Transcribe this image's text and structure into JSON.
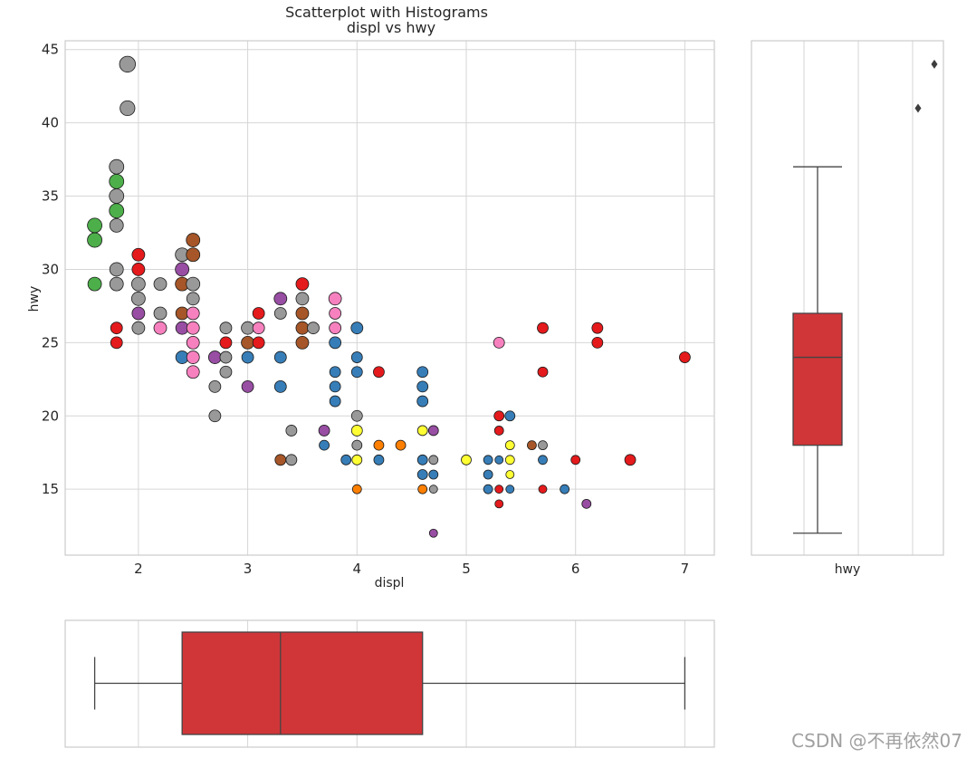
{
  "chart_data": {
    "type": "scatter",
    "title": "Scatterplot with Histograms",
    "subtitle": "displ vs hwy",
    "xlabel": "displ",
    "ylabel": "hwy",
    "xlim": [
      1.33,
      7.27
    ],
    "ylim": [
      10.5,
      45.6
    ],
    "xticks": [
      2,
      3,
      4,
      5,
      6,
      7
    ],
    "yticks": [
      15,
      20,
      25,
      30,
      35,
      40,
      45
    ],
    "grid": true,
    "palette": {
      "compact": "#4daf4a",
      "subcompact": "#999999",
      "midsize": "#e41a1c",
      "minivan": "#f781bf",
      "2seater": "#984ea3",
      "suv": "#377eb8",
      "pickup": "#ff7f00",
      "misc1": "#a65628",
      "misc2": "#ffff33"
    },
    "points": [
      {
        "x": 1.9,
        "y": 44,
        "s": 8.8,
        "c": "#999999"
      },
      {
        "x": 1.9,
        "y": 41,
        "s": 8.2,
        "c": "#999999"
      },
      {
        "x": 1.8,
        "y": 37,
        "s": 8,
        "c": "#999999"
      },
      {
        "x": 1.8,
        "y": 36,
        "s": 8,
        "c": "#4daf4a"
      },
      {
        "x": 1.8,
        "y": 35,
        "s": 8,
        "c": "#999999"
      },
      {
        "x": 1.8,
        "y": 34,
        "s": 8,
        "c": "#4daf4a"
      },
      {
        "x": 1.8,
        "y": 33,
        "s": 7.5,
        "c": "#999999"
      },
      {
        "x": 1.6,
        "y": 33,
        "s": 8,
        "c": "#4daf4a"
      },
      {
        "x": 1.6,
        "y": 32,
        "s": 8,
        "c": "#4daf4a"
      },
      {
        "x": 1.6,
        "y": 29,
        "s": 7.5,
        "c": "#4daf4a"
      },
      {
        "x": 1.8,
        "y": 30,
        "s": 7.5,
        "c": "#999999"
      },
      {
        "x": 1.8,
        "y": 29,
        "s": 7.5,
        "c": "#999999"
      },
      {
        "x": 1.8,
        "y": 26,
        "s": 6.5,
        "c": "#e41a1c"
      },
      {
        "x": 1.8,
        "y": 25,
        "s": 6.5,
        "c": "#e41a1c"
      },
      {
        "x": 2.0,
        "y": 31,
        "s": 7,
        "c": "#e41a1c"
      },
      {
        "x": 2.0,
        "y": 30,
        "s": 7,
        "c": "#e41a1c"
      },
      {
        "x": 2.0,
        "y": 29,
        "s": 7.5,
        "c": "#999999"
      },
      {
        "x": 2.0,
        "y": 28,
        "s": 7.5,
        "c": "#999999"
      },
      {
        "x": 2.0,
        "y": 27,
        "s": 7,
        "c": "#984ea3"
      },
      {
        "x": 2.0,
        "y": 26,
        "s": 7,
        "c": "#999999"
      },
      {
        "x": 2.2,
        "y": 29,
        "s": 7,
        "c": "#999999"
      },
      {
        "x": 2.2,
        "y": 27,
        "s": 7,
        "c": "#999999"
      },
      {
        "x": 2.2,
        "y": 26,
        "s": 7,
        "c": "#f781bf"
      },
      {
        "x": 2.4,
        "y": 31,
        "s": 7.5,
        "c": "#999999"
      },
      {
        "x": 2.4,
        "y": 30,
        "s": 7.5,
        "c": "#984ea3"
      },
      {
        "x": 2.4,
        "y": 29,
        "s": 7.5,
        "c": "#a65628"
      },
      {
        "x": 2.4,
        "y": 27,
        "s": 7,
        "c": "#a65628"
      },
      {
        "x": 2.4,
        "y": 26,
        "s": 7,
        "c": "#984ea3"
      },
      {
        "x": 2.4,
        "y": 24,
        "s": 7,
        "c": "#377eb8"
      },
      {
        "x": 2.5,
        "y": 32,
        "s": 7.5,
        "c": "#a65628"
      },
      {
        "x": 2.5,
        "y": 31,
        "s": 7.5,
        "c": "#a65628"
      },
      {
        "x": 2.5,
        "y": 29,
        "s": 7.5,
        "c": "#999999"
      },
      {
        "x": 2.5,
        "y": 28,
        "s": 7,
        "c": "#999999"
      },
      {
        "x": 2.5,
        "y": 27,
        "s": 7,
        "c": "#f781bf"
      },
      {
        "x": 2.5,
        "y": 26,
        "s": 7,
        "c": "#f781bf"
      },
      {
        "x": 2.5,
        "y": 25,
        "s": 7,
        "c": "#f781bf"
      },
      {
        "x": 2.5,
        "y": 24,
        "s": 7,
        "c": "#f781bf"
      },
      {
        "x": 2.5,
        "y": 23,
        "s": 7,
        "c": "#f781bf"
      },
      {
        "x": 2.7,
        "y": 24,
        "s": 7,
        "c": "#984ea3"
      },
      {
        "x": 2.7,
        "y": 22,
        "s": 6.5,
        "c": "#999999"
      },
      {
        "x": 2.7,
        "y": 20,
        "s": 6.5,
        "c": "#999999"
      },
      {
        "x": 2.8,
        "y": 26,
        "s": 6.5,
        "c": "#999999"
      },
      {
        "x": 2.8,
        "y": 25,
        "s": 6.5,
        "c": "#e41a1c"
      },
      {
        "x": 2.8,
        "y": 24,
        "s": 6.5,
        "c": "#999999"
      },
      {
        "x": 2.8,
        "y": 23,
        "s": 6.5,
        "c": "#999999"
      },
      {
        "x": 3.0,
        "y": 26,
        "s": 7,
        "c": "#999999"
      },
      {
        "x": 3.0,
        "y": 25,
        "s": 7,
        "c": "#a65628"
      },
      {
        "x": 3.0,
        "y": 24,
        "s": 6.5,
        "c": "#377eb8"
      },
      {
        "x": 3.0,
        "y": 22,
        "s": 6.5,
        "c": "#984ea3"
      },
      {
        "x": 3.1,
        "y": 27,
        "s": 6.5,
        "c": "#e41a1c"
      },
      {
        "x": 3.1,
        "y": 26,
        "s": 6.5,
        "c": "#f781bf"
      },
      {
        "x": 3.1,
        "y": 25,
        "s": 6.5,
        "c": "#e41a1c"
      },
      {
        "x": 3.3,
        "y": 28,
        "s": 7,
        "c": "#984ea3"
      },
      {
        "x": 3.3,
        "y": 27,
        "s": 6.5,
        "c": "#999999"
      },
      {
        "x": 3.3,
        "y": 24,
        "s": 6.5,
        "c": "#377eb8"
      },
      {
        "x": 3.3,
        "y": 22,
        "s": 6.5,
        "c": "#377eb8"
      },
      {
        "x": 3.3,
        "y": 17,
        "s": 6,
        "c": "#a65628"
      },
      {
        "x": 3.4,
        "y": 19,
        "s": 6,
        "c": "#999999"
      },
      {
        "x": 3.4,
        "y": 17,
        "s": 6,
        "c": "#999999"
      },
      {
        "x": 3.5,
        "y": 29,
        "s": 7,
        "c": "#e41a1c"
      },
      {
        "x": 3.5,
        "y": 28,
        "s": 7,
        "c": "#999999"
      },
      {
        "x": 3.5,
        "y": 27,
        "s": 7,
        "c": "#a65628"
      },
      {
        "x": 3.5,
        "y": 26,
        "s": 7,
        "c": "#a65628"
      },
      {
        "x": 3.5,
        "y": 25,
        "s": 7,
        "c": "#a65628"
      },
      {
        "x": 3.6,
        "y": 26,
        "s": 6.5,
        "c": "#999999"
      },
      {
        "x": 3.7,
        "y": 19,
        "s": 6,
        "c": "#984ea3"
      },
      {
        "x": 3.7,
        "y": 18,
        "s": 5.5,
        "c": "#377eb8"
      },
      {
        "x": 3.8,
        "y": 28,
        "s": 7,
        "c": "#f781bf"
      },
      {
        "x": 3.8,
        "y": 27,
        "s": 6.5,
        "c": "#f781bf"
      },
      {
        "x": 3.8,
        "y": 26,
        "s": 6.5,
        "c": "#f781bf"
      },
      {
        "x": 3.8,
        "y": 25,
        "s": 6.5,
        "c": "#377eb8"
      },
      {
        "x": 3.8,
        "y": 23,
        "s": 6,
        "c": "#377eb8"
      },
      {
        "x": 3.8,
        "y": 22,
        "s": 6,
        "c": "#377eb8"
      },
      {
        "x": 3.8,
        "y": 21,
        "s": 6,
        "c": "#377eb8"
      },
      {
        "x": 3.9,
        "y": 17,
        "s": 5.5,
        "c": "#377eb8"
      },
      {
        "x": 4.0,
        "y": 26,
        "s": 6.5,
        "c": "#377eb8"
      },
      {
        "x": 4.0,
        "y": 24,
        "s": 6,
        "c": "#377eb8"
      },
      {
        "x": 4.0,
        "y": 23,
        "s": 6,
        "c": "#377eb8"
      },
      {
        "x": 4.0,
        "y": 20,
        "s": 6,
        "c": "#999999"
      },
      {
        "x": 4.0,
        "y": 19,
        "s": 6,
        "c": "#ffff33"
      },
      {
        "x": 4.0,
        "y": 18,
        "s": 5.5,
        "c": "#999999"
      },
      {
        "x": 4.0,
        "y": 17,
        "s": 5.5,
        "c": "#ffff33"
      },
      {
        "x": 4.0,
        "y": 15,
        "s": 5,
        "c": "#ff7f00"
      },
      {
        "x": 4.2,
        "y": 23,
        "s": 6,
        "c": "#e41a1c"
      },
      {
        "x": 4.2,
        "y": 18,
        "s": 5.5,
        "c": "#ff7f00"
      },
      {
        "x": 4.2,
        "y": 17,
        "s": 5.5,
        "c": "#377eb8"
      },
      {
        "x": 4.4,
        "y": 18,
        "s": 5.5,
        "c": "#ff7f00"
      },
      {
        "x": 4.6,
        "y": 23,
        "s": 6,
        "c": "#377eb8"
      },
      {
        "x": 4.6,
        "y": 22,
        "s": 6,
        "c": "#377eb8"
      },
      {
        "x": 4.6,
        "y": 21,
        "s": 6,
        "c": "#377eb8"
      },
      {
        "x": 4.6,
        "y": 19,
        "s": 5.5,
        "c": "#ffff33"
      },
      {
        "x": 4.6,
        "y": 17,
        "s": 5.5,
        "c": "#377eb8"
      },
      {
        "x": 4.6,
        "y": 16,
        "s": 5.5,
        "c": "#377eb8"
      },
      {
        "x": 4.6,
        "y": 15,
        "s": 5,
        "c": "#ff7f00"
      },
      {
        "x": 4.7,
        "y": 19,
        "s": 5.5,
        "c": "#984ea3"
      },
      {
        "x": 4.7,
        "y": 17,
        "s": 5,
        "c": "#999999"
      },
      {
        "x": 4.7,
        "y": 16,
        "s": 5,
        "c": "#377eb8"
      },
      {
        "x": 4.7,
        "y": 15,
        "s": 4.5,
        "c": "#999999"
      },
      {
        "x": 4.7,
        "y": 12,
        "s": 4.5,
        "c": "#984ea3"
      },
      {
        "x": 5.0,
        "y": 17,
        "s": 5.5,
        "c": "#ffff33"
      },
      {
        "x": 5.2,
        "y": 17,
        "s": 5,
        "c": "#377eb8"
      },
      {
        "x": 5.2,
        "y": 16,
        "s": 5,
        "c": "#377eb8"
      },
      {
        "x": 5.2,
        "y": 15,
        "s": 5,
        "c": "#377eb8"
      },
      {
        "x": 5.3,
        "y": 25,
        "s": 6,
        "c": "#f781bf"
      },
      {
        "x": 5.3,
        "y": 20,
        "s": 5.5,
        "c": "#e41a1c"
      },
      {
        "x": 5.3,
        "y": 19,
        "s": 5,
        "c": "#e41a1c"
      },
      {
        "x": 5.3,
        "y": 17,
        "s": 4.5,
        "c": "#377eb8"
      },
      {
        "x": 5.3,
        "y": 15,
        "s": 4.5,
        "c": "#e41a1c"
      },
      {
        "x": 5.3,
        "y": 14,
        "s": 4.5,
        "c": "#e41a1c"
      },
      {
        "x": 5.4,
        "y": 20,
        "s": 5.5,
        "c": "#377eb8"
      },
      {
        "x": 5.4,
        "y": 18,
        "s": 5,
        "c": "#ffff33"
      },
      {
        "x": 5.4,
        "y": 17,
        "s": 5,
        "c": "#ffff33"
      },
      {
        "x": 5.4,
        "y": 16,
        "s": 4.5,
        "c": "#ffff33"
      },
      {
        "x": 5.4,
        "y": 15,
        "s": 4.5,
        "c": "#377eb8"
      },
      {
        "x": 5.6,
        "y": 18,
        "s": 5,
        "c": "#a65628"
      },
      {
        "x": 5.7,
        "y": 26,
        "s": 6,
        "c": "#e41a1c"
      },
      {
        "x": 5.7,
        "y": 23,
        "s": 5.5,
        "c": "#e41a1c"
      },
      {
        "x": 5.7,
        "y": 18,
        "s": 5,
        "c": "#999999"
      },
      {
        "x": 5.7,
        "y": 17,
        "s": 5,
        "c": "#377eb8"
      },
      {
        "x": 5.7,
        "y": 15,
        "s": 4.5,
        "c": "#e41a1c"
      },
      {
        "x": 5.9,
        "y": 15,
        "s": 5,
        "c": "#377eb8"
      },
      {
        "x": 6.0,
        "y": 17,
        "s": 5,
        "c": "#e41a1c"
      },
      {
        "x": 6.1,
        "y": 14,
        "s": 5,
        "c": "#984ea3"
      },
      {
        "x": 6.2,
        "y": 26,
        "s": 6,
        "c": "#e41a1c"
      },
      {
        "x": 6.2,
        "y": 25,
        "s": 6,
        "c": "#e41a1c"
      },
      {
        "x": 6.5,
        "y": 17,
        "s": 6,
        "c": "#e41a1c"
      },
      {
        "x": 7.0,
        "y": 24,
        "s": 6,
        "c": "#e41a1c"
      }
    ],
    "hwy_box": {
      "label": "hwy",
      "whisker_low": 12,
      "q1": 18,
      "median": 24,
      "q3": 27,
      "whisker_high": 37,
      "outliers": [
        41,
        44
      ],
      "color": "#d03538"
    },
    "displ_box": {
      "whisker_low": 1.6,
      "q1": 2.4,
      "median": 3.3,
      "q3": 4.6,
      "whisker_high": 7.0,
      "color": "#d03538"
    }
  },
  "watermark": "CSDN @不再依然07"
}
